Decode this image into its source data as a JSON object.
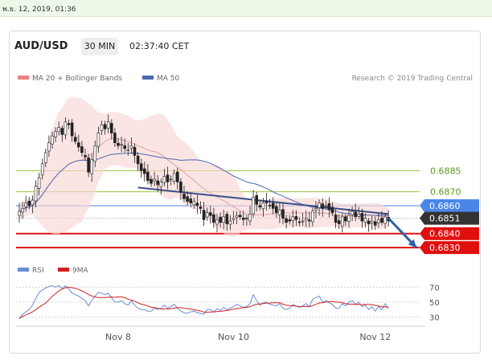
{
  "datetime": "พ.ย. 12, 2019, 01:36",
  "header": {
    "symbol": "AUD/USD",
    "timeframe": "30 MIN",
    "time": "02:37:40 CET"
  },
  "legend": {
    "ma_bb": "MA 20 + Bollinger Bands",
    "ma50": "MA 50",
    "credit": "Research © 2019 Trading Central"
  },
  "rsi_legend": {
    "rsi": "RSI",
    "ma": "9MA"
  },
  "colors": {
    "ma_bb": "#f08080",
    "ma50": "#4c6bb0",
    "level": "#9bc53d",
    "pivot": "#4a86e8",
    "support": "#e01010",
    "price": "#333333",
    "arrow": "#2e5fa8",
    "rsi": "#6a8cd0",
    "rsi_ma": "#d02020"
  },
  "chart_data": {
    "type": "candlestick",
    "title": "AUD/USD 30 MIN",
    "x_ticks": [
      "Nov 8",
      "Nov 10",
      "Nov 12"
    ],
    "ylim": [
      0.6822,
      0.6944
    ],
    "closes": [
      0.6856,
      0.6858,
      0.6862,
      0.686,
      0.6864,
      0.6874,
      0.688,
      0.689,
      0.6898,
      0.6905,
      0.691,
      0.6913,
      0.6916,
      0.6911,
      0.692,
      0.6918,
      0.691,
      0.6906,
      0.6902,
      0.6898,
      0.6895,
      0.6884,
      0.6893,
      0.6903,
      0.6912,
      0.6918,
      0.6915,
      0.692,
      0.6912,
      0.6905,
      0.6903,
      0.6904,
      0.6901,
      0.69,
      0.6903,
      0.6896,
      0.689,
      0.6885,
      0.6883,
      0.6878,
      0.6876,
      0.6879,
      0.6875,
      0.6877,
      0.6881,
      0.6877,
      0.6879,
      0.6883,
      0.6877,
      0.687,
      0.6865,
      0.6863,
      0.6862,
      0.6863,
      0.686,
      0.6858,
      0.685,
      0.6855,
      0.6853,
      0.6848,
      0.685,
      0.6848,
      0.6852,
      0.6847,
      0.6849,
      0.6851,
      0.6853,
      0.6852,
      0.685,
      0.6851,
      0.6854,
      0.6866,
      0.6861,
      0.6859,
      0.6862,
      0.6862,
      0.686,
      0.6858,
      0.6855,
      0.6857,
      0.6851,
      0.6848,
      0.6849,
      0.6852,
      0.685,
      0.6848,
      0.6849,
      0.6851,
      0.6849,
      0.6856,
      0.6858,
      0.6862,
      0.6858,
      0.686,
      0.6857,
      0.6855,
      0.6848,
      0.6847,
      0.6852,
      0.6849,
      0.6853,
      0.6856,
      0.6852,
      0.6854,
      0.6849,
      0.6851,
      0.6847,
      0.6849,
      0.6846,
      0.685,
      0.6848,
      0.6852,
      0.6849
    ],
    "levels": [
      {
        "value": 0.6885,
        "label": "0.6885",
        "kind": "level"
      },
      {
        "value": 0.687,
        "label": "0.6870",
        "kind": "level"
      },
      {
        "value": 0.686,
        "label": "0.6860",
        "kind": "pivot"
      },
      {
        "value": 0.6851,
        "label": "0.6851",
        "kind": "price"
      },
      {
        "value": 0.684,
        "label": "0.6840",
        "kind": "support"
      },
      {
        "value": 0.683,
        "label": "0.6830",
        "kind": "support"
      }
    ],
    "trendline": {
      "from": [
        36,
        0.6873
      ],
      "to": [
        112,
        0.6854
      ]
    },
    "arrow": {
      "from": [
        112,
        0.6851
      ],
      "to": [
        124,
        0.683
      ]
    },
    "rsi": {
      "ylim": [
        20,
        80
      ],
      "ticks": [
        70,
        50,
        30
      ],
      "values": [
        28,
        34,
        37,
        40,
        46,
        55,
        63,
        66,
        69,
        71,
        72,
        70,
        72,
        68,
        72,
        68,
        62,
        60,
        58,
        55,
        52,
        45,
        52,
        58,
        63,
        62,
        60,
        62,
        56,
        50,
        50,
        52,
        48,
        46,
        52,
        46,
        42,
        40,
        40,
        38,
        38,
        42,
        40,
        42,
        46,
        42,
        44,
        47,
        42,
        38,
        36,
        35,
        37,
        38,
        36,
        35,
        34,
        40,
        40,
        37,
        41,
        39,
        43,
        40,
        42,
        44,
        47,
        45,
        43,
        44,
        48,
        60,
        52,
        46,
        49,
        50,
        47,
        46,
        45,
        48,
        42,
        40,
        42,
        47,
        45,
        43,
        45,
        48,
        44,
        54,
        56,
        58,
        50,
        52,
        49,
        47,
        42,
        42,
        48,
        45,
        50,
        52,
        47,
        50,
        44,
        46,
        40,
        44,
        38,
        44,
        40,
        48,
        42
      ]
    }
  }
}
